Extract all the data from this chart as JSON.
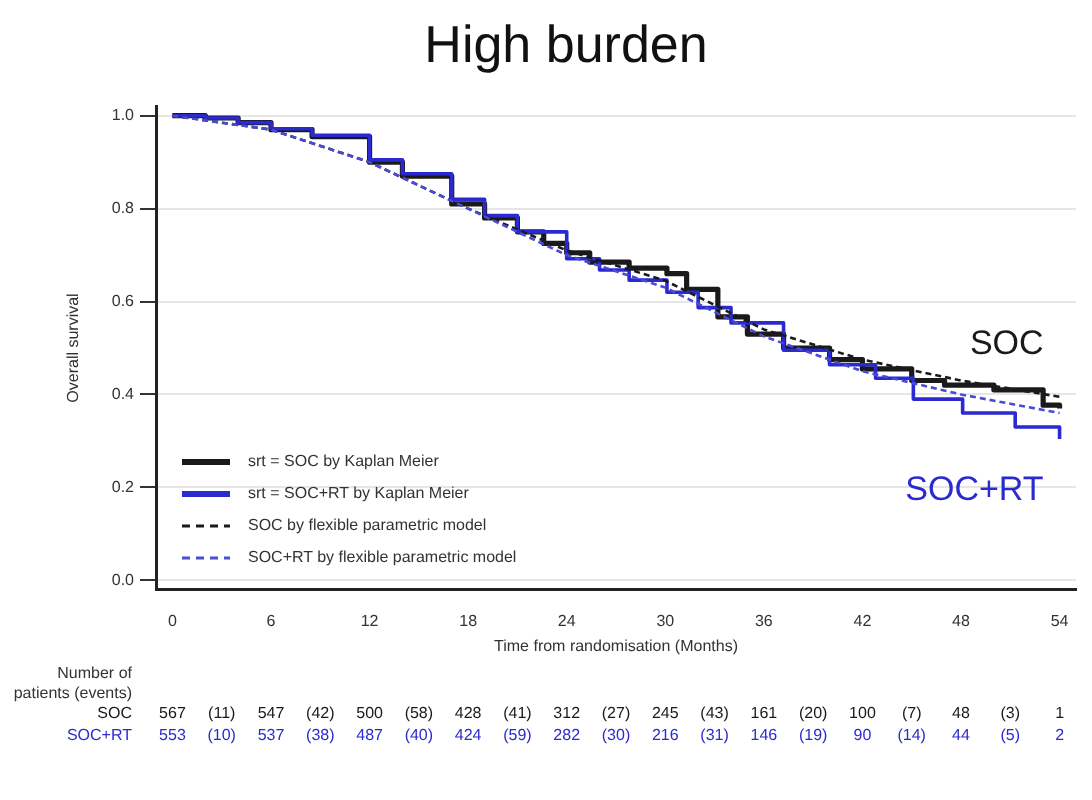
{
  "chart_data": {
    "type": "step",
    "title": "High burden",
    "xlabel": "Time from randomisation (Months)",
    "ylabel": "Overall survival",
    "xlim": [
      -1,
      55
    ],
    "xticks": [
      0,
      6,
      12,
      18,
      24,
      30,
      36,
      42,
      48,
      54
    ],
    "ylim": [
      -0.02,
      1.02
    ],
    "yticks": [
      {
        "value": 0,
        "label": "0.0"
      },
      {
        "value": 0.2,
        "label": "0.2"
      },
      {
        "value": 0.4,
        "label": "0.4"
      },
      {
        "value": 0.6,
        "label": "0.6"
      },
      {
        "value": 0.8,
        "label": "0.8"
      },
      {
        "value": 1,
        "label": "1.0"
      }
    ],
    "grid": "y",
    "legend": "bottom left",
    "marker": "none",
    "series": [
      {
        "name": "srt = SOC by Kaplan Meier",
        "color": "#1a1a1a",
        "line_style": "solid",
        "x": [
          0,
          2,
          4,
          6,
          8.5,
          12,
          14,
          17,
          19,
          21,
          22.6,
          24,
          25.4,
          27.8,
          30.1,
          31.3,
          33.2,
          35,
          37.2,
          40,
          42,
          45,
          47,
          50,
          53,
          54
        ],
        "values": [
          1,
          0.995,
          0.985,
          0.97,
          0.955,
          0.9,
          0.87,
          0.81,
          0.78,
          0.75,
          0.725,
          0.705,
          0.685,
          0.672,
          0.66,
          0.626,
          0.567,
          0.53,
          0.5,
          0.475,
          0.455,
          0.43,
          0.42,
          0.41,
          0.377,
          0.37
        ]
      },
      {
        "name": "srt = SOC+RT by Kaplan Meier",
        "color": "#2a2ad0",
        "line_style": "solid",
        "x": [
          0,
          2,
          4,
          6,
          8.5,
          12,
          14,
          17,
          19,
          21,
          24,
          26,
          27.8,
          30.1,
          32,
          34,
          37.2,
          40,
          42.8,
          45.1,
          48.1,
          51.3,
          54
        ],
        "values": [
          1,
          0.995,
          0.985,
          0.972,
          0.958,
          0.905,
          0.875,
          0.82,
          0.785,
          0.75,
          0.692,
          0.668,
          0.646,
          0.62,
          0.587,
          0.554,
          0.495,
          0.464,
          0.435,
          0.39,
          0.36,
          0.33,
          0.304
        ]
      },
      {
        "name": "SOC by flexible parametric model",
        "color": "#1a1a1a",
        "type": "line",
        "line_style": "dashed",
        "x": [
          0,
          6,
          12,
          18,
          24,
          30,
          36,
          42,
          48,
          54
        ],
        "values": [
          1,
          0.97,
          0.9,
          0.8,
          0.71,
          0.645,
          0.54,
          0.475,
          0.43,
          0.395
        ]
      },
      {
        "name": "SOC+RT by flexible parametric model",
        "color": "#4a4ad8",
        "type": "line",
        "line_style": "dashed",
        "x": [
          0,
          6,
          12,
          18,
          24,
          30,
          36,
          42,
          48,
          54
        ],
        "values": [
          1,
          0.97,
          0.9,
          0.8,
          0.7,
          0.63,
          0.525,
          0.45,
          0.4,
          0.36
        ]
      }
    ],
    "annotations": [
      "SOC",
      "SOC+RT",
      "Number of\npatients (events)",
      "SOC 567 (11) 547 (42) 500 (58) 428 (41) 312 (27) 245 (43) 161 (20) 100 (7) 48 (3) 1",
      "SOC+RT 553 (10) 537 (38) 487 (40) 424 (59) 282 (30) 216 (31) 146 (19) 90 (14) 44 (5) 2"
    ]
  }
}
